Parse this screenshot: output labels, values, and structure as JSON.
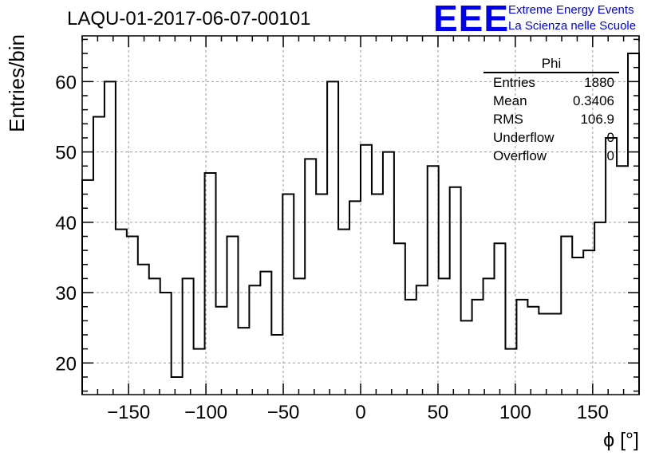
{
  "header": {
    "run_title": "LAQU-01-2017-06-07-00101",
    "logo_text": "EEE",
    "logo_line1": "Extreme Energy Events",
    "logo_line2": "La Scienza nelle Scuole"
  },
  "stats": {
    "name": "Phi",
    "rows": [
      {
        "label": "Entries",
        "value": "1880"
      },
      {
        "label": "Mean",
        "value": "0.3406"
      },
      {
        "label": "RMS",
        "value": "106.9"
      },
      {
        "label": "Underflow",
        "value": "0"
      },
      {
        "label": "Overflow",
        "value": "0"
      }
    ]
  },
  "colors": {
    "line": "#000000",
    "grid": "#9a9a9a",
    "accent": "#0000ee"
  },
  "chart_data": {
    "type": "histogram",
    "title": "LAQU-01-2017-06-07-00101",
    "xlabel": "ϕ [°]",
    "ylabel": "Entries/bin",
    "xlim": [
      -180,
      180
    ],
    "ylim": [
      15.5,
      66.5
    ],
    "bin_width": 7.2,
    "x_ticks": [
      -150,
      -100,
      -50,
      0,
      50,
      100,
      150
    ],
    "x_tick_labels": [
      "−150",
      "−100",
      "−50",
      "0",
      "50",
      "100",
      "150"
    ],
    "y_ticks": [
      20,
      30,
      40,
      50,
      60
    ],
    "y_tick_labels": [
      "20",
      "30",
      "40",
      "50",
      "60"
    ],
    "grid": true,
    "values": [
      46,
      55,
      60,
      39,
      38,
      34,
      32,
      30,
      18,
      32,
      22,
      47,
      28,
      38,
      25,
      31,
      33,
      24,
      44,
      32,
      49,
      44,
      60,
      39,
      43,
      51,
      44,
      50,
      37,
      29,
      31,
      48,
      32,
      45,
      26,
      29,
      32,
      37,
      22,
      29,
      28,
      27,
      27,
      38,
      35,
      36,
      40,
      52,
      48,
      64
    ]
  }
}
